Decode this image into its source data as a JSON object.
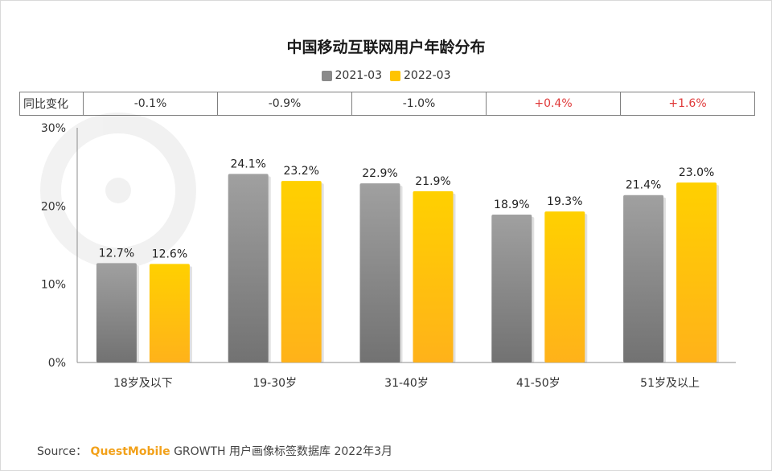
{
  "chart_data": {
    "type": "bar",
    "title": "中国移动互联网用户年龄分布",
    "categories": [
      "18岁及以下",
      "19-30岁",
      "31-40岁",
      "41-50岁",
      "51岁及以上"
    ],
    "series": [
      {
        "name": "2021-03",
        "values": [
          12.7,
          24.1,
          22.9,
          18.9,
          21.4
        ],
        "labels": [
          "12.7%",
          "24.1%",
          "22.9%",
          "18.9%",
          "21.4%"
        ],
        "color_top": "#a0a0a0",
        "color_bottom": "#727272"
      },
      {
        "name": "2022-03",
        "values": [
          12.6,
          23.2,
          21.9,
          19.3,
          23.0
        ],
        "labels": [
          "12.6%",
          "23.2%",
          "21.9%",
          "19.3%",
          "23.0%"
        ],
        "color_top": "#ffd000",
        "color_bottom": "#ffb21a"
      }
    ],
    "ylim": [
      0,
      30
    ],
    "yticks": [
      0,
      10,
      20,
      30
    ],
    "ytick_labels": [
      "0%",
      "10%",
      "20%",
      "30%"
    ],
    "xlabel": "",
    "ylabel": "",
    "legend_position": "top-center",
    "grid": false
  },
  "yoy": {
    "label": "同比变化",
    "values": [
      "-0.1%",
      "-0.9%",
      "-1.0%",
      "+0.4%",
      "+1.6%"
    ],
    "positive_color": "#e03a3a"
  },
  "source": {
    "prefix": "Source：",
    "brand": "QuestMobile",
    "rest": "GROWTH 用户画像标签数据库 2022年3月"
  }
}
